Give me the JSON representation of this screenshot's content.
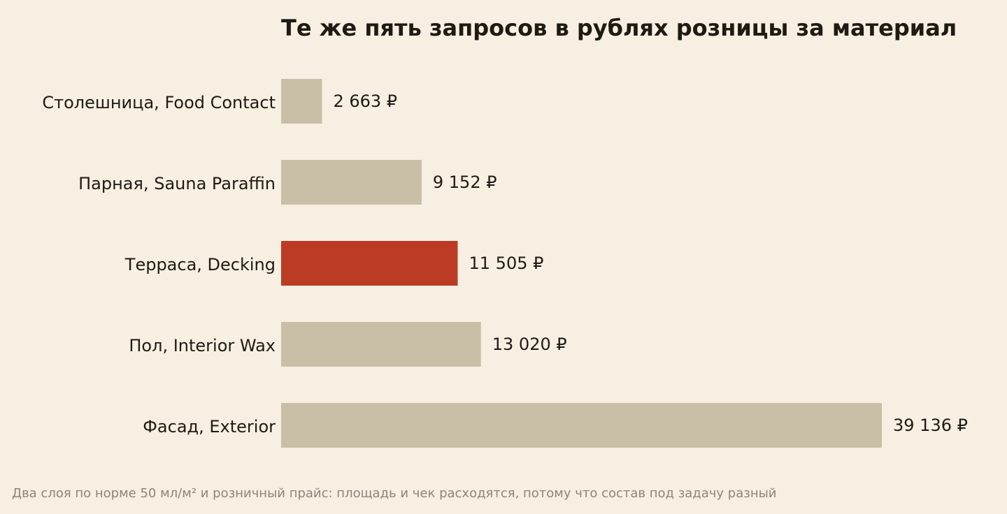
{
  "chart_data": {
    "type": "bar",
    "orientation": "horizontal",
    "title": "Те же пять запросов в рублях розницы за материал",
    "categories": [
      "Столешница, Food Contact",
      "Парная, Sauna Paraffin",
      "Терраса, Decking",
      "Пол, Interior Wax",
      "Фасад, Exterior"
    ],
    "values": [
      2663,
      9152,
      11505,
      13020,
      39136
    ],
    "value_labels": [
      "2 663 ₽",
      "9 152 ₽",
      "11 505 ₽",
      "13 020 ₽",
      "39 136 ₽"
    ],
    "highlight_index": 2,
    "colors": {
      "bar": "#c9bfa6",
      "highlight": "#bb3b25",
      "text": "#1f1a12",
      "background": "#f6efe2"
    },
    "grid": false,
    "xlim": [
      0,
      39136
    ]
  },
  "footnote": "Два слоя по норме 50 мл/м² и розничный прайс: площадь и чек расходятся, потому что состав под задачу разный"
}
